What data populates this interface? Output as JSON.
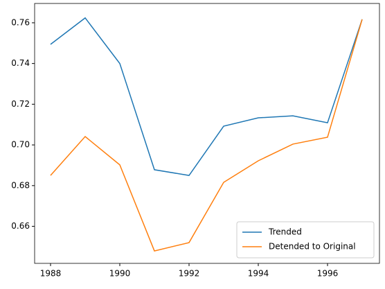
{
  "chart_data": {
    "type": "line",
    "x": [
      1988,
      1989,
      1990,
      1991,
      1992,
      1993,
      1994,
      1995,
      1996,
      1997
    ],
    "series": [
      {
        "name": "Trended",
        "color": "#1f77b4",
        "values": [
          0.7494,
          0.7624,
          0.74,
          0.6878,
          0.685,
          0.7092,
          0.7133,
          0.7143,
          0.7109,
          0.7617
        ]
      },
      {
        "name": "Detended to Original",
        "color": "#ff7f0e",
        "values": [
          0.685,
          0.7041,
          0.6902,
          0.6479,
          0.652,
          0.6816,
          0.6922,
          0.7004,
          0.7038,
          0.7617
        ]
      }
    ],
    "xlim": [
      1987.54,
      1997.5
    ],
    "ylim": [
      0.6418,
      0.7695
    ],
    "xticks": [
      1988,
      1990,
      1992,
      1994,
      1996
    ],
    "yticks": [
      0.66,
      0.68,
      {
        "value": 0.7,
        "label": "0.70"
      },
      0.72,
      0.74,
      0.76
    ],
    "legend": "lower right"
  }
}
